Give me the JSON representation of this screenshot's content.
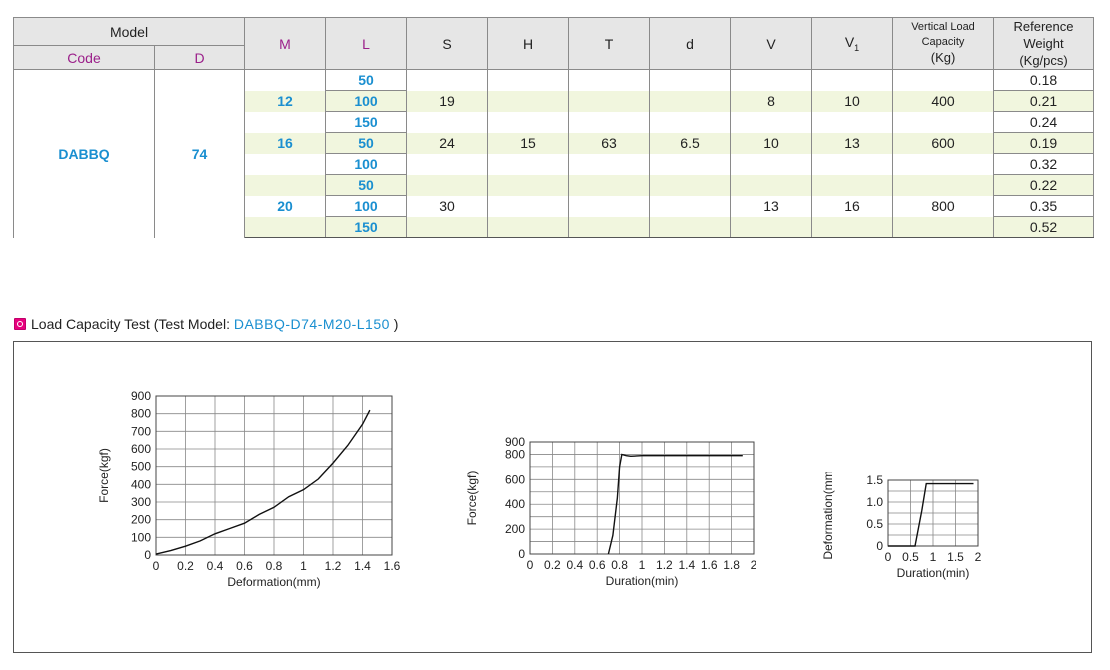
{
  "table": {
    "header": {
      "model": "Model",
      "code": "Code",
      "d": "D",
      "m": "M",
      "l": "L",
      "s": "S",
      "h": "H",
      "t": "T",
      "dd": "d",
      "v": "V",
      "v1": "V",
      "v1_sub": "1",
      "vlc_line1": "Vertical Load Capacity",
      "vlc_line2": "(Kg)",
      "rw_line1": "Reference Weight",
      "rw_line2": "(Kg/pcs)"
    },
    "code": "DABBQ",
    "d": "74",
    "h": "15",
    "t": "63",
    "dd": "6.5",
    "groups": [
      {
        "m": "12",
        "s": "19",
        "v": "8",
        "v1": "10",
        "capacity": "400",
        "rows": [
          {
            "l": "50",
            "w": "0.18"
          },
          {
            "l": "100",
            "w": "0.21"
          },
          {
            "l": "150",
            "w": "0.24"
          }
        ]
      },
      {
        "m": "16",
        "s": "24",
        "v": "10",
        "v1": "13",
        "capacity": "600",
        "rows": [
          {
            "l": "50",
            "w": "0.19"
          },
          {
            "l": "100",
            "w": "0.32"
          }
        ]
      },
      {
        "m": "20",
        "s": "30",
        "v": "13",
        "v1": "16",
        "capacity": "800",
        "rows": [
          {
            "l": "50",
            "w": "0.22"
          },
          {
            "l": "100",
            "w": "0.35"
          },
          {
            "l": "150",
            "w": "0.52"
          }
        ]
      }
    ]
  },
  "section": {
    "title": "Load Capacity Test (Test Model: ",
    "model": "DABBQ-D74-M20-L150",
    "close": " )",
    "bullet_color": "#e8007d"
  },
  "chart_data": [
    {
      "type": "line",
      "xlabel": "Deformation(mm)",
      "ylabel": "Force(kgf)",
      "xlim": [
        0,
        1.6
      ],
      "ylim": [
        0,
        900
      ],
      "xticks": [
        "0",
        "0.2",
        "0.4",
        "0.6",
        "0.8",
        "1",
        "1.2",
        "1.4",
        "1.6"
      ],
      "yticks": [
        "0",
        "100",
        "200",
        "300",
        "400",
        "500",
        "600",
        "700",
        "800",
        "900"
      ],
      "grid": true,
      "series": [
        {
          "x": [
            0,
            0.1,
            0.2,
            0.3,
            0.4,
            0.5,
            0.6,
            0.7,
            0.8,
            0.9,
            1.0,
            1.1,
            1.2,
            1.3,
            1.4,
            1.45
          ],
          "y": [
            5,
            25,
            50,
            80,
            120,
            150,
            180,
            230,
            270,
            330,
            370,
            430,
            520,
            620,
            740,
            820
          ]
        }
      ]
    },
    {
      "type": "line",
      "xlabel": "Duration(min)",
      "ylabel": "Force(kgf)",
      "xlim": [
        0,
        2
      ],
      "ylim": [
        0,
        900
      ],
      "xticks": [
        "0",
        "0.2",
        "0.4",
        "0.6",
        "0.8",
        "1",
        "1.2",
        "1.4",
        "1.6",
        "1.8",
        "2"
      ],
      "yticks": [
        "0",
        "200",
        "400",
        "600",
        "800",
        "900"
      ],
      "grid": true,
      "series": [
        {
          "x": [
            0.7,
            0.74,
            0.78,
            0.8,
            0.82,
            0.86,
            0.9,
            1.0,
            1.9
          ],
          "y": [
            0,
            150,
            450,
            700,
            800,
            790,
            785,
            790,
            790
          ]
        }
      ]
    },
    {
      "type": "line",
      "xlabel": "Duration(min)",
      "ylabel": "Deformation(mm)",
      "xlim": [
        0,
        2
      ],
      "ylim": [
        0,
        1.5
      ],
      "xticks": [
        "0",
        "0.5",
        "1",
        "1.5",
        "2"
      ],
      "yticks": [
        "0",
        "0.5",
        "1.0",
        "1.5"
      ],
      "grid": true,
      "series": [
        {
          "x": [
            0,
            0.6,
            0.75,
            0.85,
            1.0,
            1.9
          ],
          "y": [
            0,
            0,
            0.8,
            1.42,
            1.42,
            1.42
          ]
        }
      ]
    }
  ]
}
